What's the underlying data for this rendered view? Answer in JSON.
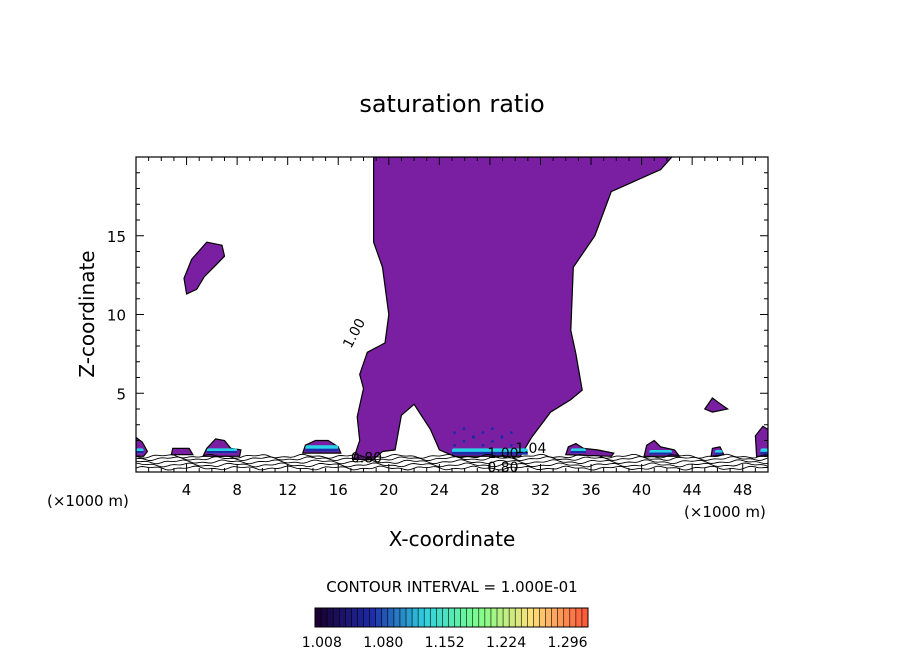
{
  "chart_data": {
    "type": "contour",
    "title": "saturation ratio",
    "xlabel": "X-coordinate",
    "ylabel": "Z-coordinate",
    "x_unit_left": "(×1000 m)",
    "x_unit_right": "(×1000 m)",
    "xlim": [
      0,
      50
    ],
    "ylim": [
      0,
      20
    ],
    "x_ticks": [
      4,
      8,
      12,
      16,
      20,
      24,
      28,
      32,
      36,
      40,
      44,
      48
    ],
    "y_ticks": [
      5,
      10,
      15
    ],
    "contour_interval_text": "CONTOUR INTERVAL = 1.000E-01",
    "contour_labels": [
      {
        "text": "1.00",
        "x": 17.0,
        "z": 7.8
      },
      {
        "text": "0.80",
        "x": 17.0,
        "z": 0.6
      },
      {
        "text": "0.80",
        "x": 27.8,
        "z": 0.0
      },
      {
        "text": "1.00",
        "x": 27.8,
        "z": 0.9
      },
      {
        "text": "1.04",
        "x": 30.0,
        "z": 1.2
      }
    ],
    "fill_threshold": 1.0,
    "fill_color": "#7b1fa2",
    "colorbar": {
      "ticks": [
        "1.008",
        "1.080",
        "1.152",
        "1.224",
        "1.296"
      ],
      "min": 1.0,
      "max": 1.32,
      "colors": [
        "#1a0033",
        "#1e2aa8",
        "#2fd0e0",
        "#7cff8a",
        "#ffe07a",
        "#ff5a3a"
      ]
    },
    "regions": [
      {
        "name": "main-plume",
        "points": [
          [
            18.8,
            20
          ],
          [
            42.4,
            20
          ],
          [
            41.5,
            19.2
          ],
          [
            37.6,
            17.8
          ],
          [
            36.3,
            15
          ],
          [
            34.6,
            13
          ],
          [
            34.4,
            9
          ],
          [
            34.8,
            7.5
          ],
          [
            35.3,
            5.2
          ],
          [
            34.4,
            4.6
          ],
          [
            32.8,
            3.8
          ],
          [
            31.3,
            2.2
          ],
          [
            30.4,
            1.0
          ],
          [
            28.0,
            1.0
          ],
          [
            25.2,
            1.0
          ],
          [
            24.0,
            1.4
          ],
          [
            23.3,
            2.7
          ],
          [
            22.0,
            4.3
          ],
          [
            21.0,
            3.6
          ],
          [
            20.5,
            1.4
          ],
          [
            19.5,
            1.3
          ],
          [
            18.8,
            0.8
          ],
          [
            17.2,
            0.8
          ],
          [
            17.7,
            2.0
          ],
          [
            17.5,
            3.5
          ],
          [
            18.0,
            5.3
          ],
          [
            17.7,
            6.2
          ],
          [
            18.3,
            7.6
          ],
          [
            19.7,
            8.2
          ],
          [
            20.0,
            10.0
          ],
          [
            19.5,
            13.0
          ],
          [
            18.8,
            14.6
          ],
          [
            18.8,
            20
          ]
        ]
      },
      {
        "name": "upper-left-blob",
        "points": [
          [
            4.0,
            11.3
          ],
          [
            3.8,
            12.3
          ],
          [
            4.4,
            13.5
          ],
          [
            5.6,
            14.6
          ],
          [
            6.8,
            14.4
          ],
          [
            7.0,
            13.7
          ],
          [
            6.4,
            13.2
          ],
          [
            5.4,
            12.4
          ],
          [
            4.8,
            11.6
          ],
          [
            4.0,
            11.3
          ]
        ]
      },
      {
        "name": "blob-right-46",
        "points": [
          [
            45.0,
            4.0
          ],
          [
            45.6,
            4.7
          ],
          [
            46.1,
            4.4
          ],
          [
            46.8,
            4.0
          ],
          [
            45.6,
            3.8
          ],
          [
            45.0,
            4.0
          ]
        ]
      },
      {
        "name": "blob-left-edge",
        "points": [
          [
            0,
            1.0
          ],
          [
            0,
            2.2
          ],
          [
            0.5,
            1.9
          ],
          [
            0.9,
            1.3
          ],
          [
            0.6,
            1.0
          ],
          [
            0,
            1.0
          ]
        ]
      },
      {
        "name": "blob-3",
        "points": [
          [
            2.8,
            1.1
          ],
          [
            2.9,
            1.5
          ],
          [
            4.2,
            1.5
          ],
          [
            4.5,
            1.1
          ],
          [
            2.8,
            1.1
          ]
        ]
      },
      {
        "name": "blob-6",
        "points": [
          [
            5.3,
            1.0
          ],
          [
            5.6,
            1.5
          ],
          [
            6.3,
            2.1
          ],
          [
            7.0,
            2.0
          ],
          [
            7.5,
            1.5
          ],
          [
            8.3,
            1.4
          ],
          [
            8.2,
            1.0
          ],
          [
            5.3,
            1.0
          ]
        ]
      },
      {
        "name": "blob-14",
        "points": [
          [
            13.2,
            1.2
          ],
          [
            13.4,
            1.7
          ],
          [
            14.2,
            2.0
          ],
          [
            15.2,
            2.0
          ],
          [
            16.0,
            1.6
          ],
          [
            16.2,
            1.2
          ],
          [
            13.2,
            1.2
          ]
        ]
      },
      {
        "name": "blob-35",
        "points": [
          [
            34.0,
            1.1
          ],
          [
            34.2,
            1.6
          ],
          [
            34.8,
            1.8
          ],
          [
            35.4,
            1.5
          ],
          [
            36.5,
            1.4
          ],
          [
            37.8,
            1.2
          ],
          [
            37.6,
            1.0
          ],
          [
            34.0,
            1.1
          ]
        ]
      },
      {
        "name": "blob-41",
        "points": [
          [
            40.2,
            1.0
          ],
          [
            40.4,
            1.7
          ],
          [
            41.0,
            2.0
          ],
          [
            41.5,
            1.6
          ],
          [
            42.6,
            1.4
          ],
          [
            43.0,
            1.0
          ],
          [
            40.2,
            1.0
          ]
        ]
      },
      {
        "name": "blob-45",
        "points": [
          [
            45.5,
            1.0
          ],
          [
            45.6,
            1.5
          ],
          [
            46.2,
            1.6
          ],
          [
            46.5,
            1.1
          ],
          [
            45.5,
            1.0
          ]
        ]
      },
      {
        "name": "blob-49",
        "points": [
          [
            49.1,
            1.0
          ],
          [
            49.0,
            2.3
          ],
          [
            49.6,
            2.9
          ],
          [
            50,
            2.7
          ],
          [
            50,
            1.0
          ],
          [
            49.1,
            1.0
          ]
        ]
      }
    ],
    "cyan_patches": [
      {
        "x0": 0.0,
        "x1": 0.6,
        "z0": 1.2,
        "z1": 1.5
      },
      {
        "x0": 5.6,
        "x1": 8.0,
        "z0": 1.2,
        "z1": 1.5
      },
      {
        "x0": 13.4,
        "x1": 16.0,
        "z0": 1.3,
        "z1": 1.7
      },
      {
        "x0": 25.0,
        "x1": 31.0,
        "z0": 1.1,
        "z1": 1.5
      },
      {
        "x0": 34.4,
        "x1": 35.6,
        "z0": 1.2,
        "z1": 1.5
      },
      {
        "x0": 40.6,
        "x1": 42.4,
        "z0": 1.1,
        "z1": 1.4
      },
      {
        "x0": 45.8,
        "x1": 46.4,
        "z0": 1.1,
        "z1": 1.4
      },
      {
        "x0": 49.4,
        "x1": 50.0,
        "z0": 1.1,
        "z1": 1.5
      }
    ],
    "surface_contours_z": [
      0.25,
      0.45,
      0.65,
      0.85,
      1.0
    ]
  }
}
